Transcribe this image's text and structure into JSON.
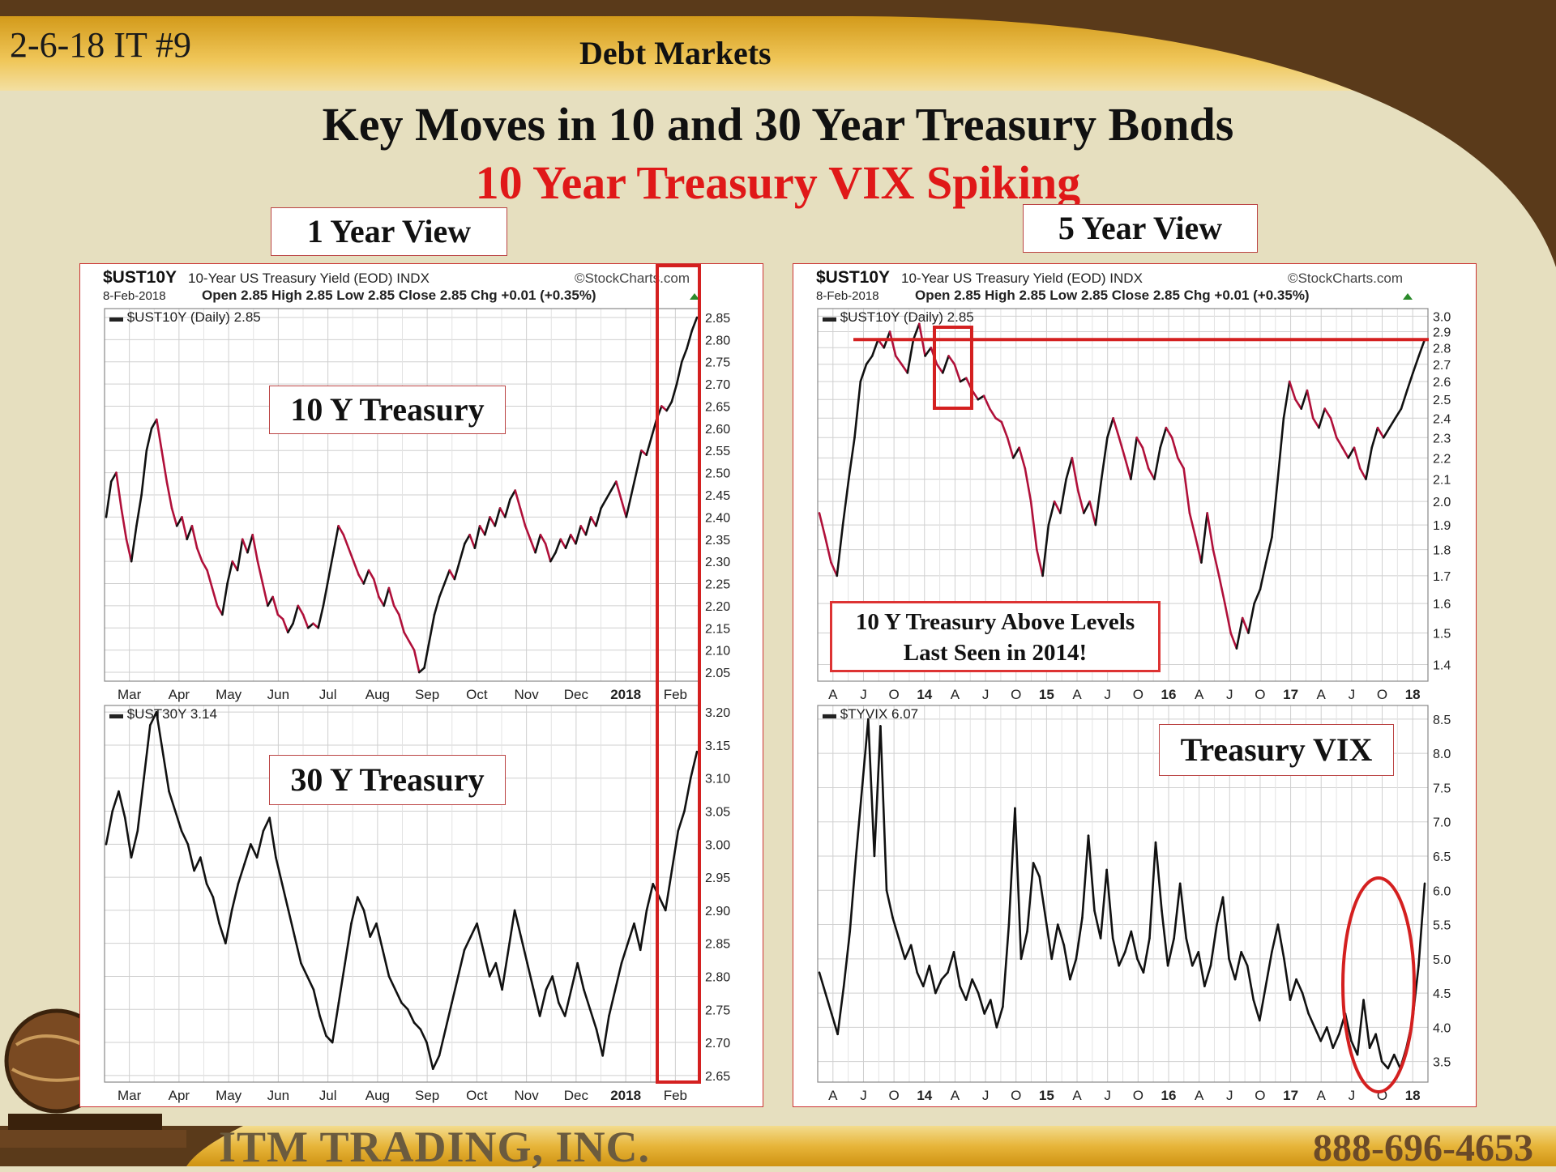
{
  "header": {
    "slide_code": "2-6-18 IT #9",
    "section_title": "Debt Markets",
    "title": "Key Moves in 10 and 30 Year Treasury Bonds",
    "subtitle": "10 Year Treasury VIX Spiking"
  },
  "views": {
    "one_year": "1 Year View",
    "five_year": "5 Year View"
  },
  "footer": {
    "company": "ITM TRADING, INC.",
    "phone": "888-696-4653"
  },
  "colors": {
    "accent_red": "#e01818",
    "yield_up": "#111111",
    "yield_down": "#b0103a",
    "header_gold": "#e0a92a",
    "header_brown": "#5a3a1a"
  },
  "chart_data": [
    {
      "id": "ust10y-1y",
      "type": "line",
      "symbol": "$UST10Y",
      "title": "10-Year US Treasury Yield (EOD)",
      "exchange": "INDX",
      "source": "©StockCharts.com",
      "date": "8-Feb-2018",
      "ohlc": "Open 2.85  High 2.85  Low 2.85  Close 2.85  Chg +0.01 (+0.35%)",
      "legend": "$UST10Y (Daily) 2.85",
      "annotation": "10 Y Treasury",
      "xticks": [
        "Mar",
        "Apr",
        "May",
        "Jun",
        "Jul",
        "Aug",
        "Sep",
        "Oct",
        "Nov",
        "Dec",
        "2018",
        "Feb"
      ],
      "yticks": [
        "2.85",
        "2.80",
        "2.75",
        "2.70",
        "2.65",
        "2.60",
        "2.55",
        "2.50",
        "2.45",
        "2.40",
        "2.35",
        "2.30",
        "2.25",
        "2.20",
        "2.15",
        "2.10",
        "2.05"
      ],
      "ylim": [
        2.03,
        2.87
      ],
      "values": [
        2.4,
        2.48,
        2.5,
        2.42,
        2.35,
        2.3,
        2.38,
        2.45,
        2.55,
        2.6,
        2.62,
        2.55,
        2.48,
        2.42,
        2.38,
        2.4,
        2.35,
        2.38,
        2.33,
        2.3,
        2.28,
        2.24,
        2.2,
        2.18,
        2.25,
        2.3,
        2.28,
        2.35,
        2.32,
        2.36,
        2.3,
        2.25,
        2.2,
        2.22,
        2.18,
        2.17,
        2.14,
        2.16,
        2.2,
        2.18,
        2.15,
        2.16,
        2.15,
        2.2,
        2.26,
        2.32,
        2.38,
        2.36,
        2.33,
        2.3,
        2.27,
        2.25,
        2.28,
        2.26,
        2.22,
        2.2,
        2.24,
        2.2,
        2.18,
        2.14,
        2.12,
        2.1,
        2.05,
        2.06,
        2.12,
        2.18,
        2.22,
        2.25,
        2.28,
        2.26,
        2.3,
        2.34,
        2.36,
        2.33,
        2.38,
        2.36,
        2.4,
        2.38,
        2.42,
        2.4,
        2.44,
        2.46,
        2.42,
        2.38,
        2.35,
        2.32,
        2.36,
        2.34,
        2.3,
        2.32,
        2.35,
        2.33,
        2.36,
        2.34,
        2.38,
        2.36,
        2.4,
        2.38,
        2.42,
        2.44,
        2.46,
        2.48,
        2.44,
        2.4,
        2.45,
        2.5,
        2.55,
        2.54,
        2.58,
        2.62,
        2.65,
        2.64,
        2.66,
        2.7,
        2.75,
        2.78,
        2.82,
        2.85
      ]
    },
    {
      "id": "ust30y-1y",
      "type": "line",
      "symbol": "$UST30Y",
      "legend": "$UST30Y 3.14",
      "annotation": "30 Y Treasury",
      "xticks": [
        "Mar",
        "Apr",
        "May",
        "Jun",
        "Jul",
        "Aug",
        "Sep",
        "Oct",
        "Nov",
        "Dec",
        "2018",
        "Feb"
      ],
      "yticks": [
        "3.20",
        "3.15",
        "3.10",
        "3.05",
        "3.00",
        "2.95",
        "2.90",
        "2.85",
        "2.80",
        "2.75",
        "2.70",
        "2.65"
      ],
      "ylim": [
        2.64,
        3.21
      ],
      "values": [
        3.0,
        3.05,
        3.08,
        3.04,
        2.98,
        3.02,
        3.1,
        3.18,
        3.2,
        3.14,
        3.08,
        3.05,
        3.02,
        3.0,
        2.96,
        2.98,
        2.94,
        2.92,
        2.88,
        2.85,
        2.9,
        2.94,
        2.97,
        3.0,
        2.98,
        3.02,
        3.04,
        2.98,
        2.94,
        2.9,
        2.86,
        2.82,
        2.8,
        2.78,
        2.74,
        2.71,
        2.7,
        2.76,
        2.82,
        2.88,
        2.92,
        2.9,
        2.86,
        2.88,
        2.84,
        2.8,
        2.78,
        2.76,
        2.75,
        2.73,
        2.72,
        2.7,
        2.66,
        2.68,
        2.72,
        2.76,
        2.8,
        2.84,
        2.86,
        2.88,
        2.84,
        2.8,
        2.82,
        2.78,
        2.84,
        2.9,
        2.86,
        2.82,
        2.78,
        2.74,
        2.78,
        2.8,
        2.76,
        2.74,
        2.78,
        2.82,
        2.78,
        2.75,
        2.72,
        2.68,
        2.74,
        2.78,
        2.82,
        2.85,
        2.88,
        2.84,
        2.9,
        2.94,
        2.92,
        2.9,
        2.96,
        3.02,
        3.05,
        3.1,
        3.14
      ]
    },
    {
      "id": "ust10y-5y",
      "type": "line",
      "symbol": "$UST10Y",
      "title": "10-Year US Treasury Yield (EOD)",
      "exchange": "INDX",
      "source": "©StockCharts.com",
      "date": "8-Feb-2018",
      "ohlc": "Open 2.85  High 2.85  Low 2.85  Close 2.85  Chg +0.01 (+0.35%)",
      "legend": "$UST10Y (Daily) 2.85",
      "annotation": "10 Y Treasury Above Levels Last Seen in 2014!",
      "xticks": [
        "A",
        "J",
        "O",
        "14",
        "A",
        "J",
        "O",
        "15",
        "A",
        "J",
        "O",
        "16",
        "A",
        "J",
        "O",
        "17",
        "A",
        "J",
        "O",
        "18"
      ],
      "yticks": [
        "3.0",
        "2.9",
        "2.8",
        "2.7",
        "2.6",
        "2.5",
        "2.4",
        "2.3",
        "2.2",
        "2.1",
        "2.0",
        "1.9",
        "1.8",
        "1.7",
        "1.6",
        "1.5",
        "1.4"
      ],
      "log_scale": true,
      "ylim": [
        1.35,
        3.05
      ],
      "resistance_level": 2.85,
      "values": [
        1.95,
        1.85,
        1.75,
        1.7,
        1.9,
        2.1,
        2.3,
        2.6,
        2.7,
        2.75,
        2.85,
        2.8,
        2.9,
        2.75,
        2.7,
        2.65,
        2.85,
        2.95,
        2.75,
        2.8,
        2.7,
        2.65,
        2.75,
        2.7,
        2.6,
        2.62,
        2.55,
        2.5,
        2.52,
        2.45,
        2.4,
        2.38,
        2.3,
        2.2,
        2.25,
        2.15,
        2.0,
        1.8,
        1.7,
        1.9,
        2.0,
        1.95,
        2.1,
        2.2,
        2.05,
        1.95,
        2.0,
        1.9,
        2.1,
        2.3,
        2.4,
        2.3,
        2.2,
        2.1,
        2.3,
        2.25,
        2.15,
        2.1,
        2.25,
        2.35,
        2.3,
        2.2,
        2.15,
        1.95,
        1.85,
        1.75,
        1.95,
        1.8,
        1.7,
        1.6,
        1.5,
        1.45,
        1.55,
        1.5,
        1.6,
        1.65,
        1.75,
        1.85,
        2.1,
        2.4,
        2.6,
        2.5,
        2.45,
        2.55,
        2.4,
        2.35,
        2.45,
        2.4,
        2.3,
        2.25,
        2.2,
        2.25,
        2.15,
        2.1,
        2.25,
        2.35,
        2.3,
        2.35,
        2.4,
        2.45,
        2.55,
        2.65,
        2.75,
        2.85
      ]
    },
    {
      "id": "tyvix-5y",
      "type": "line",
      "symbol": "$TYVIX",
      "legend": "$TYVIX 6.07",
      "annotation": "Treasury VIX",
      "xticks": [
        "A",
        "J",
        "O",
        "14",
        "A",
        "J",
        "O",
        "15",
        "A",
        "J",
        "O",
        "16",
        "A",
        "J",
        "O",
        "17",
        "A",
        "J",
        "O",
        "18"
      ],
      "yticks": [
        "8.5",
        "8.0",
        "7.5",
        "7.0",
        "6.5",
        "6.0",
        "5.5",
        "5.0",
        "4.5",
        "4.0",
        "3.5"
      ],
      "ylim": [
        3.2,
        8.7
      ],
      "values": [
        4.8,
        4.5,
        4.2,
        3.9,
        4.6,
        5.4,
        6.5,
        7.5,
        8.5,
        6.5,
        8.4,
        6.0,
        5.6,
        5.3,
        5.0,
        5.2,
        4.8,
        4.6,
        4.9,
        4.5,
        4.7,
        4.8,
        5.1,
        4.6,
        4.4,
        4.7,
        4.5,
        4.2,
        4.4,
        4.0,
        4.3,
        5.5,
        7.2,
        5.0,
        5.4,
        6.4,
        6.2,
        5.6,
        5.0,
        5.5,
        5.2,
        4.7,
        5.0,
        5.6,
        6.8,
        5.7,
        5.3,
        6.3,
        5.3,
        4.9,
        5.1,
        5.4,
        5.0,
        4.8,
        5.3,
        6.7,
        5.7,
        4.9,
        5.3,
        6.1,
        5.3,
        4.9,
        5.1,
        4.6,
        4.9,
        5.5,
        5.9,
        5.0,
        4.7,
        5.1,
        4.9,
        4.4,
        4.1,
        4.6,
        5.1,
        5.5,
        5.0,
        4.4,
        4.7,
        4.5,
        4.2,
        4.0,
        3.8,
        4.0,
        3.7,
        3.9,
        4.2,
        3.8,
        3.6,
        4.4,
        3.7,
        3.9,
        3.5,
        3.4,
        3.6,
        3.4,
        3.7,
        4.1,
        4.9,
        6.1
      ]
    }
  ]
}
